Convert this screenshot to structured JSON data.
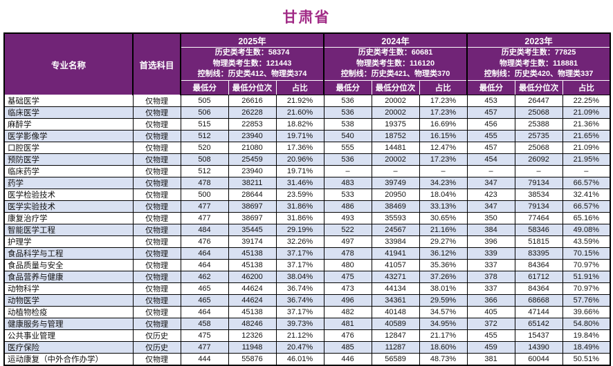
{
  "title": "甘肃省",
  "colors": {
    "title_text": "#A12B86",
    "header_bg": "#712477",
    "header_text": "#ffffff",
    "alt_row_bg": "#D9E1F2",
    "grid_border": "#000000"
  },
  "table": {
    "major_header": "专业名称",
    "subject_header": "首选科目",
    "years": [
      {
        "label": "2025年",
        "stats": "历史类考生数：58374\n物理类考生数：121443\n控制线：历史类412、物理类374"
      },
      {
        "label": "2024年",
        "stats": "历史类考生数：60681\n物理类考生数：116120\n控制线：历史类421、物理类370"
      },
      {
        "label": "2023年",
        "stats": "历史类考生数：77825\n物理类考生数：118881\n控制线：历史类420、物理类337"
      }
    ],
    "metric_headers": [
      "最低分",
      "最低分位次",
      "占比"
    ],
    "rows": [
      {
        "major": "基础医学",
        "subject": "仅物理",
        "values": [
          "505",
          "26616",
          "21.92%",
          "536",
          "20002",
          "17.23%",
          "453",
          "26447",
          "22.25%"
        ]
      },
      {
        "major": "临床医学",
        "subject": "仅物理",
        "values": [
          "506",
          "26228",
          "21.60%",
          "536",
          "20002",
          "17.23%",
          "457",
          "25068",
          "21.09%"
        ]
      },
      {
        "major": "麻醉学",
        "subject": "仅物理",
        "values": [
          "515",
          "22853",
          "18.82%",
          "538",
          "19375",
          "16.69%",
          "456",
          "25388",
          "21.36%"
        ]
      },
      {
        "major": "医学影像学",
        "subject": "仅物理",
        "values": [
          "512",
          "23940",
          "19.71%",
          "540",
          "18752",
          "16.15%",
          "455",
          "25735",
          "21.65%"
        ]
      },
      {
        "major": "口腔医学",
        "subject": "仅物理",
        "values": [
          "520",
          "21080",
          "17.36%",
          "555",
          "14481",
          "12.47%",
          "457",
          "25068",
          "21.09%"
        ]
      },
      {
        "major": "预防医学",
        "subject": "仅物理",
        "values": [
          "508",
          "25459",
          "20.96%",
          "536",
          "20002",
          "17.23%",
          "454",
          "26092",
          "21.95%"
        ]
      },
      {
        "major": "临床药学",
        "subject": "仅物理",
        "values": [
          "512",
          "23940",
          "19.71%",
          "–",
          "–",
          "–",
          "–",
          "–",
          "–"
        ]
      },
      {
        "major": "药学",
        "subject": "仅物理",
        "values": [
          "478",
          "38211",
          "31.46%",
          "483",
          "39749",
          "34.23%",
          "347",
          "79134",
          "66.57%"
        ]
      },
      {
        "major": "医学检验技术",
        "subject": "仅物理",
        "values": [
          "500",
          "28644",
          "23.59%",
          "533",
          "20950",
          "18.04%",
          "423",
          "38534",
          "32.41%"
        ]
      },
      {
        "major": "医学实验技术",
        "subject": "仅物理",
        "values": [
          "477",
          "38697",
          "31.86%",
          "486",
          "38469",
          "33.13%",
          "347",
          "79134",
          "66.57%"
        ]
      },
      {
        "major": "康复治疗学",
        "subject": "仅物理",
        "values": [
          "477",
          "38697",
          "31.86%",
          "493",
          "35593",
          "30.65%",
          "350",
          "77464",
          "65.16%"
        ]
      },
      {
        "major": "智能医学工程",
        "subject": "仅物理",
        "values": [
          "484",
          "35445",
          "29.19%",
          "522",
          "24567",
          "21.16%",
          "384",
          "58346",
          "49.08%"
        ]
      },
      {
        "major": "护理学",
        "subject": "仅物理",
        "values": [
          "476",
          "39174",
          "32.26%",
          "497",
          "33984",
          "29.27%",
          "396",
          "51815",
          "43.59%"
        ]
      },
      {
        "major": "食品科学与工程",
        "subject": "仅物理",
        "values": [
          "464",
          "45138",
          "37.17%",
          "478",
          "41941",
          "36.12%",
          "339",
          "83395",
          "70.15%"
        ]
      },
      {
        "major": "食品质量与安全",
        "subject": "仅物理",
        "values": [
          "464",
          "45138",
          "37.17%",
          "480",
          "41057",
          "35.36%",
          "337",
          "84364",
          "70.97%"
        ]
      },
      {
        "major": "食品营养与健康",
        "subject": "仅物理",
        "values": [
          "462",
          "46200",
          "38.04%",
          "475",
          "43271",
          "37.26%",
          "378",
          "61712",
          "51.91%"
        ]
      },
      {
        "major": "动物科学",
        "subject": "仅物理",
        "values": [
          "465",
          "44624",
          "36.74%",
          "473",
          "44134",
          "38.01%",
          "337",
          "84364",
          "70.97%"
        ]
      },
      {
        "major": "动物医学",
        "subject": "仅物理",
        "values": [
          "465",
          "44624",
          "36.74%",
          "496",
          "34361",
          "29.59%",
          "366",
          "68668",
          "57.76%"
        ]
      },
      {
        "major": "动植物检疫",
        "subject": "仅物理",
        "values": [
          "464",
          "45138",
          "37.17%",
          "482",
          "40148",
          "34.57%",
          "405",
          "47144",
          "39.66%"
        ]
      },
      {
        "major": "健康服务与管理",
        "subject": "仅物理",
        "values": [
          "458",
          "48246",
          "39.73%",
          "481",
          "40589",
          "34.95%",
          "372",
          "65142",
          "54.80%"
        ]
      },
      {
        "major": "公共事业管理",
        "subject": "仅历史",
        "values": [
          "475",
          "12326",
          "21.12%",
          "476",
          "12847",
          "21.17%",
          "455",
          "15437",
          "19.84%"
        ]
      },
      {
        "major": "医疗保险",
        "subject": "仅历史",
        "values": [
          "477",
          "11948",
          "20.47%",
          "485",
          "11287",
          "18.60%",
          "459",
          "14390",
          "18.49%"
        ]
      },
      {
        "major": "运动康复（中外合作办学）",
        "subject": "仅物理",
        "values": [
          "444",
          "55876",
          "46.01%",
          "446",
          "56589",
          "48.73%",
          "381",
          "60044",
          "50.51%"
        ]
      }
    ]
  }
}
